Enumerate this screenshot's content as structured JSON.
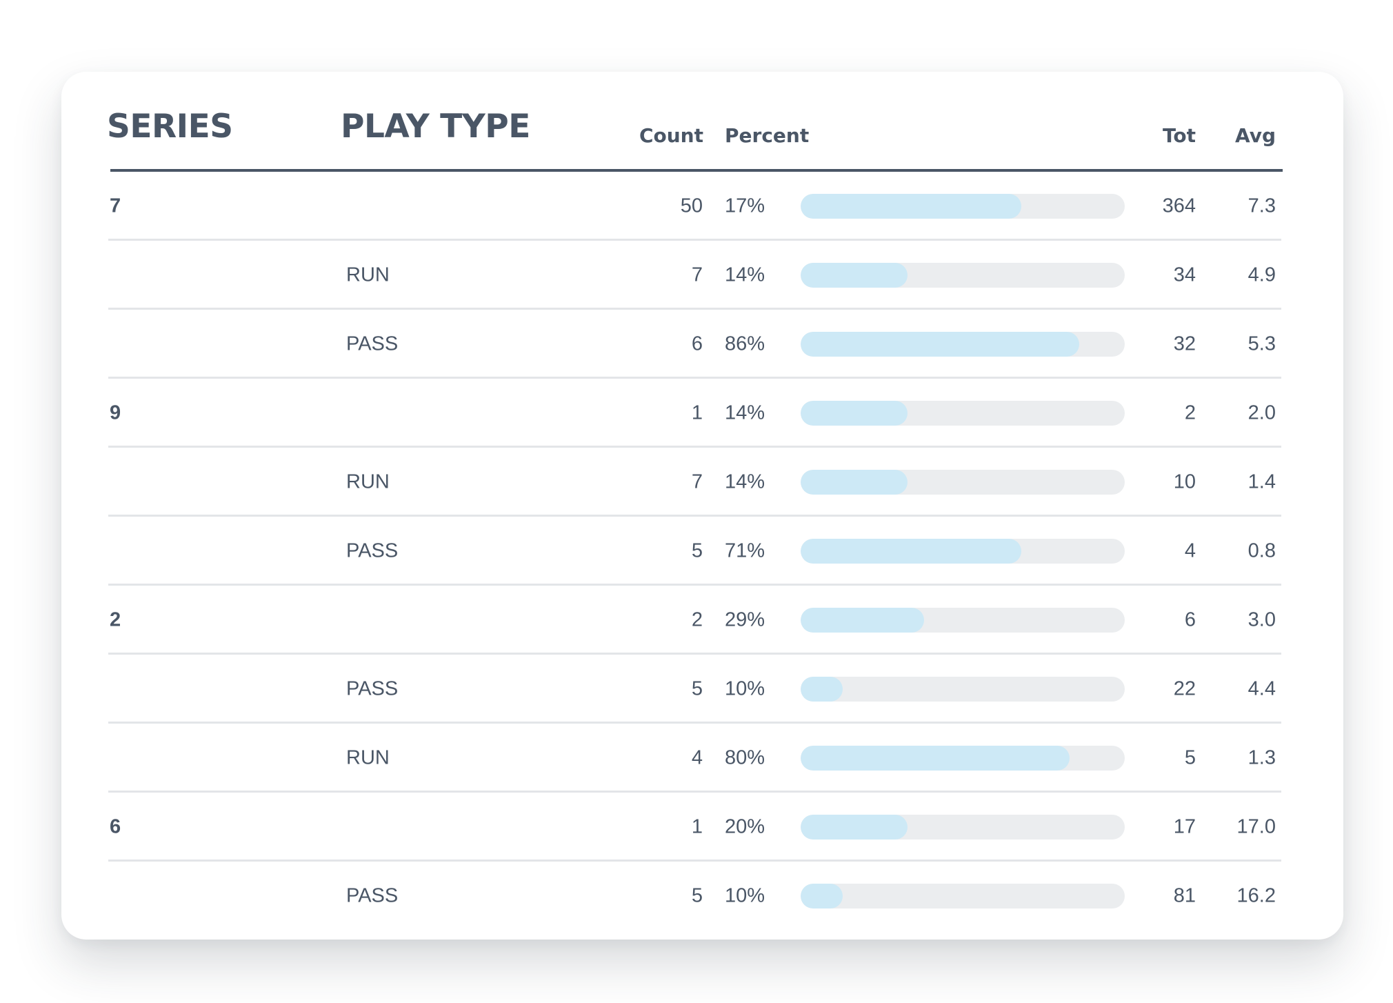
{
  "table": {
    "headers": {
      "series": "SERIES",
      "play_type": "PLAY TYPE",
      "count": "Count",
      "percent": "Percent",
      "tot": "Tot",
      "avg": "Avg"
    },
    "rows": [
      {
        "series": "7",
        "play_type": "",
        "count": "50",
        "percent": "17%",
        "bar_fill": 0.68,
        "tot": "364",
        "avg": "7.3"
      },
      {
        "series": "",
        "play_type": "RUN",
        "count": "7",
        "percent": "14%",
        "bar_fill": 0.33,
        "tot": "34",
        "avg": "4.9"
      },
      {
        "series": "",
        "play_type": "PASS",
        "count": "6",
        "percent": "86%",
        "bar_fill": 0.86,
        "tot": "32",
        "avg": "5.3"
      },
      {
        "series": "9",
        "play_type": "",
        "count": "1",
        "percent": "14%",
        "bar_fill": 0.33,
        "tot": "2",
        "avg": "2.0"
      },
      {
        "series": "",
        "play_type": "RUN",
        "count": "7",
        "percent": "14%",
        "bar_fill": 0.33,
        "tot": "10",
        "avg": "1.4"
      },
      {
        "series": "",
        "play_type": "PASS",
        "count": "5",
        "percent": "71%",
        "bar_fill": 0.68,
        "tot": "4",
        "avg": "0.8"
      },
      {
        "series": "2",
        "play_type": "",
        "count": "2",
        "percent": "29%",
        "bar_fill": 0.38,
        "tot": "6",
        "avg": "3.0"
      },
      {
        "series": "",
        "play_type": "PASS",
        "count": "5",
        "percent": "10%",
        "bar_fill": 0.13,
        "tot": "22",
        "avg": "4.4"
      },
      {
        "series": "",
        "play_type": "RUN",
        "count": "4",
        "percent": "80%",
        "bar_fill": 0.83,
        "tot": "5",
        "avg": "1.3"
      },
      {
        "series": "6",
        "play_type": "",
        "count": "1",
        "percent": "20%",
        "bar_fill": 0.33,
        "tot": "17",
        "avg": "17.0"
      },
      {
        "series": "",
        "play_type": "PASS",
        "count": "5",
        "percent": "10%",
        "bar_fill": 0.13,
        "tot": "81",
        "avg": "16.2"
      }
    ]
  },
  "colors": {
    "text": "#4a5666",
    "bar_fill": "#cde9f6",
    "bar_track": "#ebedef",
    "divider": "#e3e5e8",
    "header_rule": "#4a5666"
  }
}
